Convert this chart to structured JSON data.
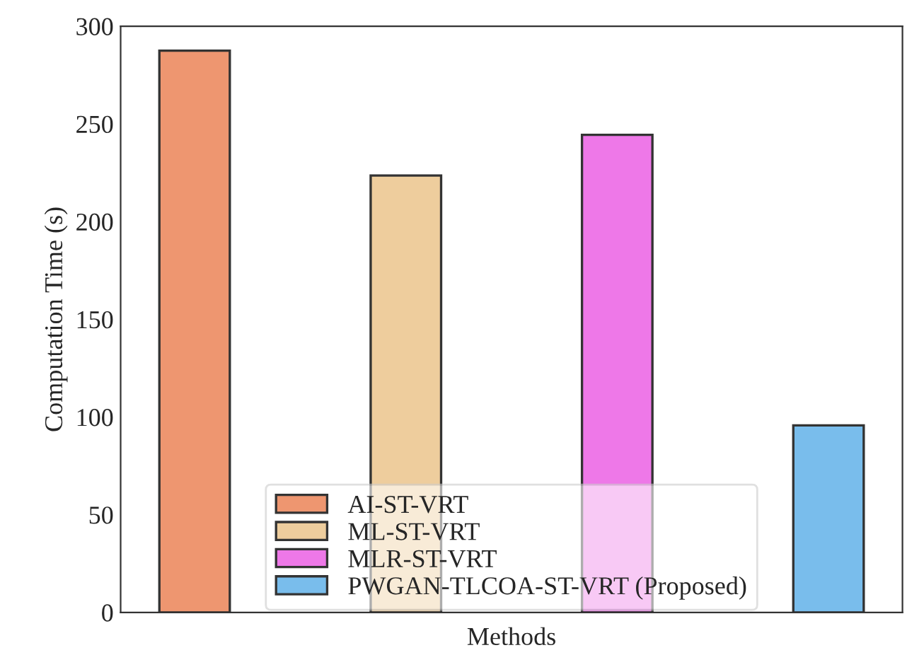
{
  "chart_data": {
    "type": "bar",
    "xlabel": "Methods",
    "ylabel": "Computation Time (s)",
    "categories": [
      null
    ],
    "series": [
      {
        "name": "AI-ST-VRT",
        "color": "#ee9670",
        "values": [
          287.5
        ]
      },
      {
        "name": "ML-ST-VRT",
        "color": "#eecd9d",
        "values": [
          223.6
        ]
      },
      {
        "name": "MLR-ST-VRT",
        "color": "#ee78e8",
        "values": [
          244.4
        ]
      },
      {
        "name": "PWGAN-TLCOA-ST-VRT (Proposed)",
        "color": "#79bdec",
        "values": [
          95.7
        ]
      }
    ],
    "ylim": [
      0,
      300
    ],
    "yticks": [
      0,
      50,
      100,
      150,
      200,
      250,
      300
    ],
    "grid": false,
    "legend": "bottom"
  }
}
